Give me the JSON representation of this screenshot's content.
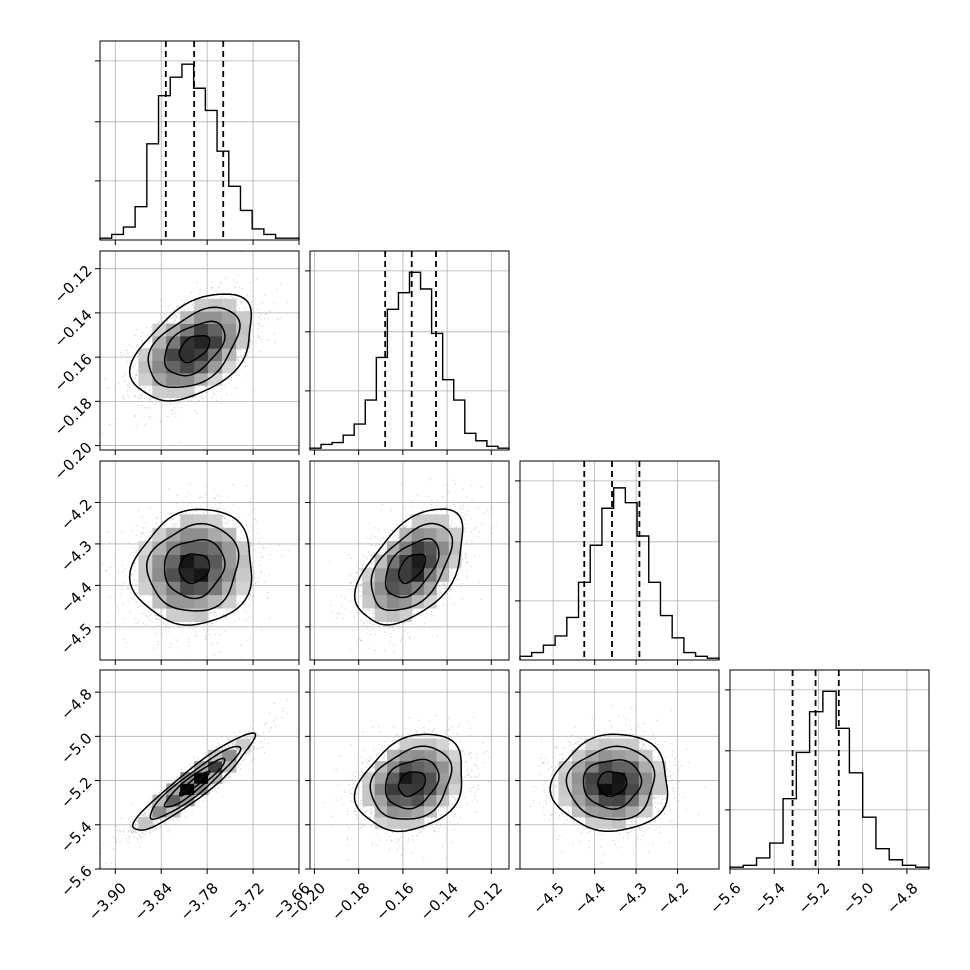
{
  "chart_data": {
    "type": "corner",
    "parameters": [
      {
        "range": [
          -3.92,
          -3.66
        ],
        "ticks": [
          "−3.90",
          "−3.84",
          "−3.78",
          "−3.72",
          "−3.66"
        ],
        "tick_values": [
          -3.9,
          -3.84,
          -3.78,
          -3.72,
          -3.66
        ],
        "quantiles": {
          "q16": -3.834,
          "q50": -3.797,
          "q84": -3.759
        },
        "histogram": [
          0.01,
          0.03,
          0.07,
          0.18,
          0.52,
          0.78,
          0.88,
          0.95,
          0.82,
          0.7,
          0.48,
          0.29,
          0.16,
          0.06,
          0.03,
          0.01,
          0.01
        ]
      },
      {
        "range": [
          -0.202,
          -0.112
        ],
        "ticks": [
          "−0.20",
          "−0.18",
          "−0.16",
          "−0.14",
          "−0.12"
        ],
        "tick_values": [
          -0.2,
          -0.18,
          -0.16,
          -0.14,
          -0.12
        ],
        "quantiles": {
          "q16": -0.168,
          "q50": -0.156,
          "q84": -0.145
        },
        "histogram": [
          0.01,
          0.03,
          0.04,
          0.08,
          0.14,
          0.27,
          0.5,
          0.76,
          0.85,
          0.96,
          0.87,
          0.63,
          0.38,
          0.27,
          0.09,
          0.05,
          0.02,
          0.01
        ]
      },
      {
        "range": [
          -4.58,
          -4.1
        ],
        "ticks": [
          "−4.5",
          "−4.4",
          "−4.3",
          "−4.2"
        ],
        "tick_values": [
          -4.5,
          -4.4,
          -4.3,
          -4.2
        ],
        "quantiles": {
          "q16": -4.425,
          "q50": -4.358,
          "q84": -4.292
        },
        "histogram": [
          0.02,
          0.04,
          0.08,
          0.13,
          0.23,
          0.42,
          0.62,
          0.82,
          0.93,
          0.85,
          0.67,
          0.42,
          0.24,
          0.12,
          0.04,
          0.02,
          0.01
        ]
      },
      {
        "range": [
          -5.6,
          -4.7
        ],
        "ticks": [
          "−5.6",
          "−5.4",
          "−5.2",
          "−5.0",
          "−4.8"
        ],
        "tick_values": [
          -5.6,
          -5.4,
          -5.2,
          -5.0,
          -4.8
        ],
        "quantiles": {
          "q16": -5.317,
          "q50": -5.213,
          "q84": -5.108
        },
        "histogram": [
          0.01,
          0.02,
          0.06,
          0.14,
          0.38,
          0.63,
          0.85,
          0.96,
          0.76,
          0.52,
          0.28,
          0.11,
          0.05,
          0.02,
          0.01
        ]
      }
    ],
    "correlations": [
      [
        1.0,
        0.45,
        0.1,
        0.93
      ],
      [
        0.45,
        1.0,
        0.5,
        0.25
      ],
      [
        0.1,
        0.5,
        1.0,
        0.05
      ],
      [
        0.93,
        0.25,
        0.05,
        1.0
      ]
    ],
    "grid": true,
    "colors": {
      "line": "#000000",
      "scatter": "#bbbbbb",
      "grid": "#b0b0b0"
    }
  }
}
